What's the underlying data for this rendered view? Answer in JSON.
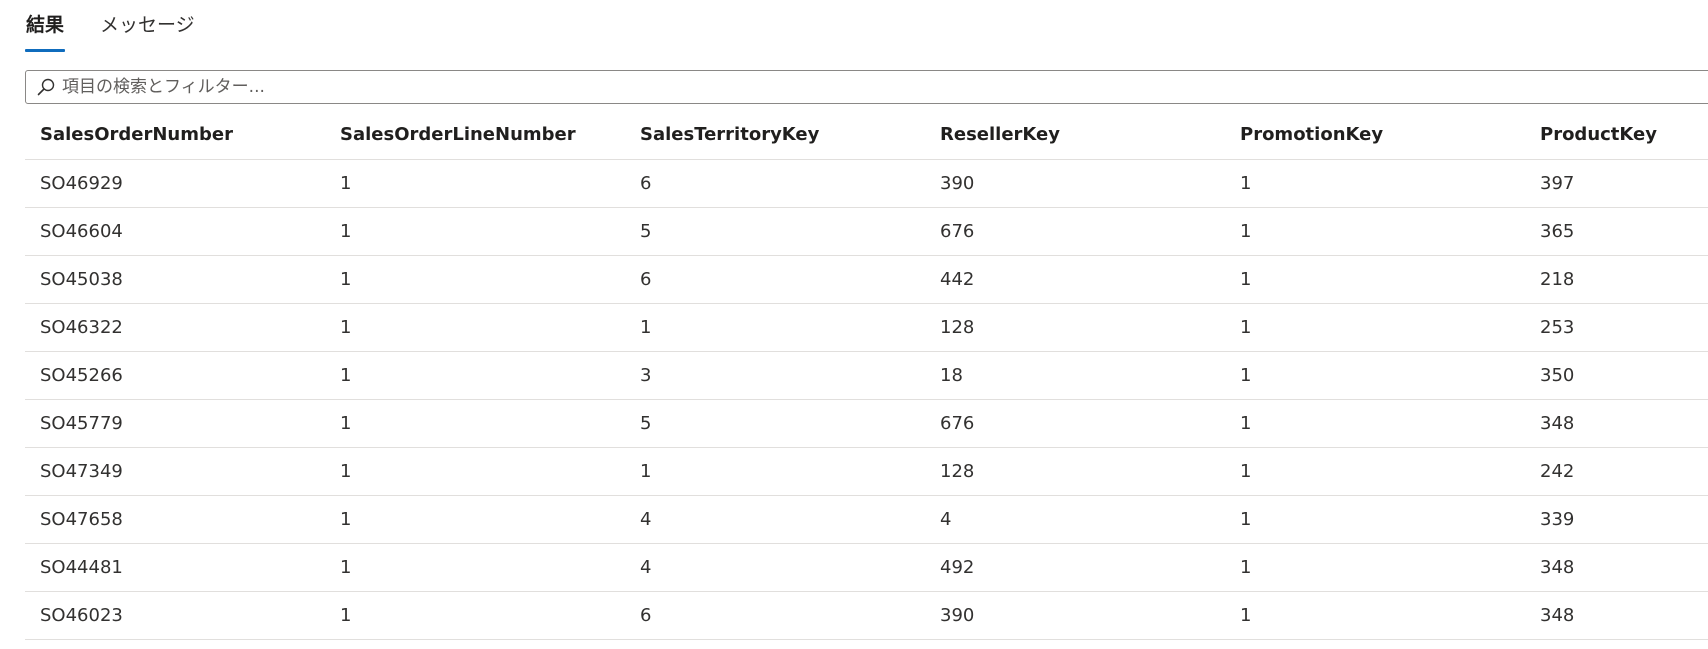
{
  "tabs": [
    {
      "label": "結果",
      "active": true
    },
    {
      "label": "メッセージ",
      "active": false
    }
  ],
  "search": {
    "placeholder": "項目の検索とフィルター..."
  },
  "table": {
    "columns": [
      "SalesOrderNumber",
      "SalesOrderLineNumber",
      "SalesTerritoryKey",
      "ResellerKey",
      "PromotionKey",
      "ProductKey"
    ],
    "rows": [
      [
        "SO46929",
        "1",
        "6",
        "390",
        "1",
        "397"
      ],
      [
        "SO46604",
        "1",
        "5",
        "676",
        "1",
        "365"
      ],
      [
        "SO45038",
        "1",
        "6",
        "442",
        "1",
        "218"
      ],
      [
        "SO46322",
        "1",
        "1",
        "128",
        "1",
        "253"
      ],
      [
        "SO45266",
        "1",
        "3",
        "18",
        "1",
        "350"
      ],
      [
        "SO45779",
        "1",
        "5",
        "676",
        "1",
        "348"
      ],
      [
        "SO47349",
        "1",
        "1",
        "128",
        "1",
        "242"
      ],
      [
        "SO47658",
        "1",
        "4",
        "4",
        "1",
        "339"
      ],
      [
        "SO44481",
        "1",
        "4",
        "492",
        "1",
        "348"
      ],
      [
        "SO46023",
        "1",
        "6",
        "390",
        "1",
        "348"
      ]
    ]
  },
  "colors": {
    "accent": "#0f6cbd",
    "border": "#e1dfdd",
    "text": "#323130"
  }
}
